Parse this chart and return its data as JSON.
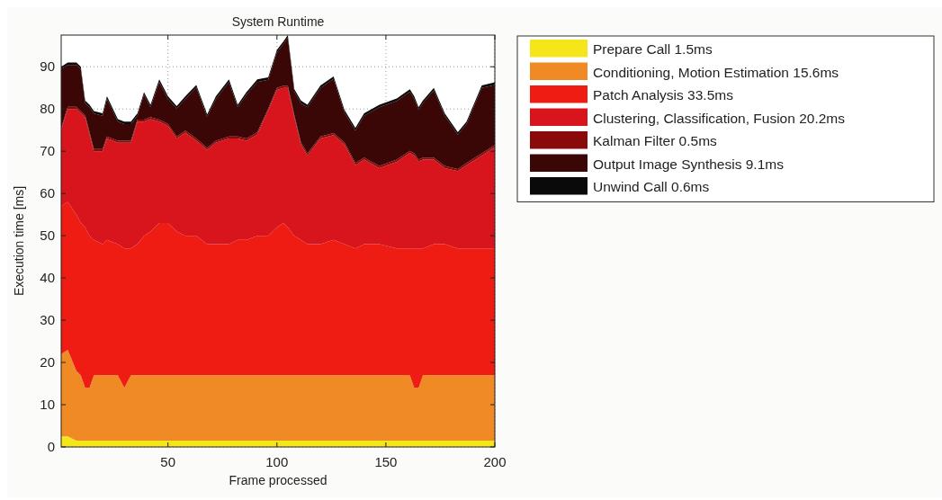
{
  "chart_data": {
    "type": "area",
    "stacked": true,
    "title": "System Runtime",
    "xlabel": "Frame processed",
    "ylabel": "Execution time [ms]",
    "x": [
      1,
      4,
      8,
      10,
      12,
      14,
      16,
      20,
      22,
      27,
      30,
      33,
      36,
      39,
      42,
      46,
      50,
      54,
      58,
      63,
      68,
      72,
      78,
      82,
      86,
      91,
      96,
      100,
      103,
      105,
      108,
      111,
      114,
      120,
      126,
      131,
      136,
      140,
      147,
      155,
      161,
      163,
      165,
      167,
      172,
      177,
      183,
      187,
      194,
      200
    ],
    "xlim": [
      1,
      200
    ],
    "xticks": [
      50,
      100,
      150,
      200
    ],
    "ylim": [
      0,
      97.5
    ],
    "yticks": [
      0,
      10,
      20,
      30,
      40,
      50,
      60,
      70,
      80,
      90
    ],
    "grid": true,
    "legend": "right",
    "series": [
      {
        "name": "Prepare Call 1.5ms",
        "color": "#f5e61a",
        "values": [
          2.5,
          2.5,
          1.5,
          1.5,
          1.5,
          1.5,
          1.5,
          1.5,
          1.5,
          1.5,
          1.5,
          1.5,
          1.5,
          1.5,
          1.5,
          1.5,
          1.5,
          1.5,
          1.5,
          1.5,
          1.5,
          1.5,
          1.5,
          1.5,
          1.5,
          1.5,
          1.5,
          1.5,
          1.5,
          1.5,
          1.5,
          1.5,
          1.5,
          1.5,
          1.5,
          1.5,
          1.5,
          1.5,
          1.5,
          1.5,
          1.5,
          1.5,
          1.5,
          1.5,
          1.5,
          1.5,
          1.5,
          1.5,
          1.5,
          1.5
        ]
      },
      {
        "name": "Conditioning, Motion Estimation 15.6ms",
        "color": "#f08a24",
        "values": [
          19.5,
          20.5,
          16.5,
          15.5,
          12.5,
          12.5,
          15.5,
          15.5,
          15.5,
          15.5,
          12.5,
          15.5,
          15.5,
          15.5,
          15.5,
          15.5,
          15.5,
          15.5,
          15.5,
          15.5,
          15.5,
          15.5,
          15.5,
          15.5,
          15.5,
          15.5,
          15.5,
          15.5,
          15.5,
          15.5,
          15.5,
          15.5,
          15.5,
          15.5,
          15.5,
          15.5,
          15.5,
          15.5,
          15.5,
          15.5,
          15.5,
          12.5,
          12.5,
          15.5,
          15.5,
          15.5,
          15.5,
          15.5,
          15.5,
          15.5
        ]
      },
      {
        "name": "Patch Analysis 33.5ms",
        "color": "#ee1c12",
        "values": [
          35,
          35,
          37,
          36,
          38,
          36,
          32,
          31,
          32,
          31,
          33,
          30,
          31,
          33,
          34,
          36,
          36,
          34,
          33,
          33,
          31,
          31,
          31,
          32,
          32,
          33,
          33,
          35,
          36,
          35,
          33,
          32,
          31,
          31,
          32,
          31,
          30,
          31,
          31,
          30,
          30,
          33,
          33,
          30,
          31,
          31,
          30,
          30,
          30,
          30
        ]
      },
      {
        "name": "Clustering, Classification, Fusion 20.2ms",
        "color": "#d8141c",
        "values": [
          18,
          22,
          25,
          26,
          26,
          24,
          21,
          22,
          24,
          24,
          25,
          25,
          29,
          27,
          26.6,
          24,
          23,
          22,
          24.4,
          22.5,
          22.3,
          24,
          25,
          24,
          23.5,
          24,
          29.6,
          32.5,
          32,
          33,
          28,
          22.6,
          21,
          25,
          24.8,
          23.6,
          19.7,
          20,
          18,
          20.5,
          22.6,
          22,
          20.5,
          21,
          20,
          18,
          18.3,
          19.7,
          22,
          24
        ]
      },
      {
        "name": "Kalman Filter 0.5ms",
        "color": "#8a0a0a",
        "values": [
          0.5,
          0.5,
          0.5,
          0.5,
          0.5,
          0.5,
          0.5,
          0.5,
          0.5,
          0.5,
          0.5,
          0.5,
          0.5,
          0.5,
          0.5,
          0.5,
          0.5,
          0.5,
          0.5,
          0.5,
          0.5,
          0.5,
          0.5,
          0.5,
          0.5,
          0.5,
          0.5,
          0.5,
          0.5,
          0.5,
          0.5,
          0.5,
          0.5,
          0.5,
          0.5,
          0.5,
          0.5,
          0.5,
          0.5,
          0.5,
          0.5,
          0.5,
          0.5,
          0.5,
          0.5,
          0.5,
          0.5,
          0.5,
          0.5,
          0.5
        ]
      },
      {
        "name": "Output Image Synthesis 9.1ms",
        "color": "#3a0606",
        "values": [
          13.9,
          9.9,
          9.9,
          9.9,
          2.9,
          5.9,
          8.4,
          7.9,
          8.9,
          4.5,
          3.9,
          3.9,
          0.9,
          5.9,
          2.3,
          8.9,
          5.9,
          6.6,
          7.5,
          12.1,
          7.3,
          9.9,
          12.9,
          6.9,
          10.4,
          11.9,
          6.8,
          8.4,
          9.9,
          11.4,
          5.6,
          9.3,
          10.9,
          11.5,
          12.8,
          7.1,
          7.7,
          9.9,
          13.9,
          13.9,
          14,
          12.9,
          11.8,
          12.9,
          15.9,
          11.9,
          8.1,
          9.2,
          15.5,
          14.2
        ]
      },
      {
        "name": "Unwind Call 0.6ms",
        "color": "#0a0a0a",
        "values": [
          0.6,
          0.6,
          0.6,
          0.6,
          0.6,
          0.6,
          0.6,
          0.6,
          0.6,
          0.6,
          0.6,
          0.6,
          0.6,
          0.6,
          0.6,
          0.6,
          0.6,
          0.6,
          0.6,
          0.6,
          0.6,
          0.6,
          0.6,
          0.6,
          0.6,
          0.6,
          0.6,
          0.6,
          0.6,
          0.6,
          0.6,
          0.6,
          0.6,
          0.6,
          0.6,
          0.6,
          0.6,
          0.6,
          0.6,
          0.6,
          0.6,
          0.6,
          0.6,
          0.6,
          0.6,
          0.6,
          0.6,
          0.6,
          0.6,
          0.6
        ]
      }
    ]
  }
}
